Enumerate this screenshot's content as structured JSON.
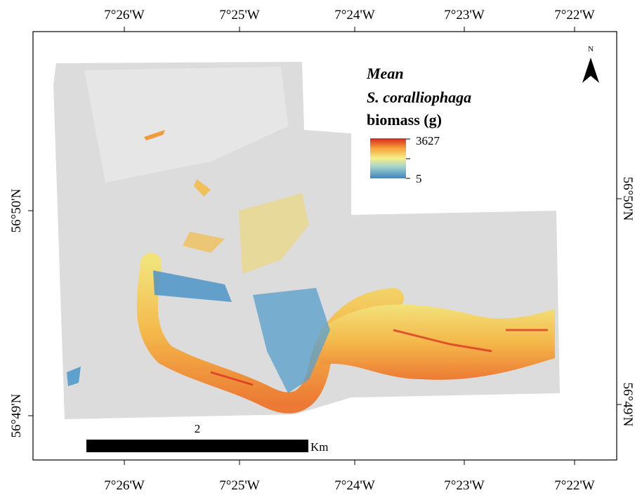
{
  "axes": {
    "top_ticks": [
      "7°26'W",
      "7°25'W",
      "7°24'W",
      "7°23'W",
      "7°22'W"
    ],
    "bottom_ticks": [
      "7°26'W",
      "7°25'W",
      "7°24'W",
      "7°23'W",
      "7°22'W"
    ],
    "left_ticks": [
      "56°50'N",
      "56°49'N"
    ],
    "right_ticks": [
      "56°50'N",
      "56°49'N"
    ]
  },
  "legend": {
    "title": [
      "Mean",
      "S. coralliophaga",
      "biomass (g)"
    ],
    "max": 3627,
    "min": 5
  },
  "north_label": "N",
  "scale_bar": {
    "length": 2,
    "unit": "Km"
  }
}
